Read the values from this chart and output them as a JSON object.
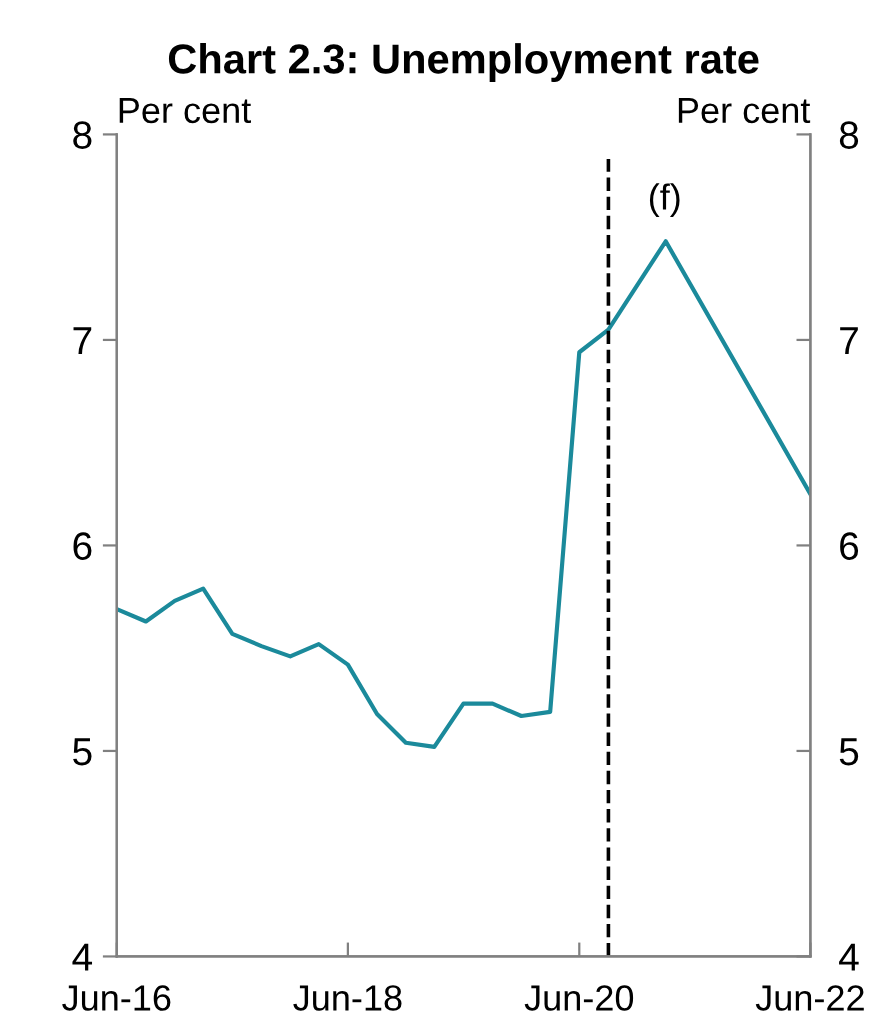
{
  "chart_data": {
    "type": "line",
    "title": "Chart 2.3: Unemployment rate",
    "ylabel": "Per cent",
    "y2label": "Per cent",
    "x": [
      "2016-06",
      "2016-09",
      "2016-12",
      "2017-03",
      "2017-06",
      "2017-09",
      "2017-12",
      "2018-03",
      "2018-06",
      "2018-09",
      "2018-12",
      "2019-03",
      "2019-06",
      "2019-09",
      "2019-12",
      "2020-03",
      "2020-06",
      "2020-09",
      "2021-03",
      "2022-06"
    ],
    "series": [
      {
        "color": "#1b8a9b",
        "values": [
          5.69,
          5.63,
          5.73,
          5.79,
          5.57,
          5.51,
          5.46,
          5.52,
          5.42,
          5.18,
          5.04,
          5.02,
          5.23,
          5.23,
          5.17,
          5.19,
          6.94,
          7.05,
          7.48,
          6.25
        ]
      }
    ],
    "xlim": [
      "2016-06",
      "2022-06"
    ],
    "xticks": [
      {
        "value": "2016-06",
        "label": "Jun-16"
      },
      {
        "value": "2018-06",
        "label": "Jun-18"
      },
      {
        "value": "2020-06",
        "label": "Jun-20"
      },
      {
        "value": "2022-06",
        "label": "Jun-22"
      }
    ],
    "ylim": [
      4,
      8
    ],
    "yticks": [
      4,
      5,
      6,
      7,
      8
    ],
    "y2lim": [
      4,
      8
    ],
    "y2ticks": [
      4,
      5,
      6,
      7,
      8
    ],
    "ref_lines": [
      {
        "axis": "x",
        "value": "2020-09",
        "color": "#000000",
        "line_style": "dashed"
      }
    ],
    "annotations": [
      "(f)"
    ],
    "grid": false,
    "legend": false,
    "marker": "none",
    "line_style": "solid"
  }
}
